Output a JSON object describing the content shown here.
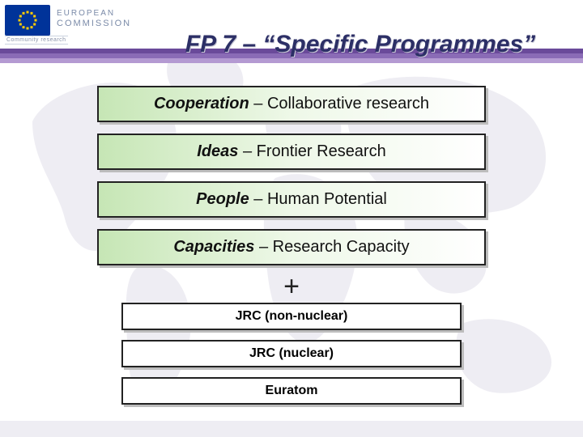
{
  "header": {
    "org_line1": "EUROPEAN",
    "org_line2": "COMMISSION",
    "subline": "Community research"
  },
  "stripes": {
    "colors": [
      "#6a4a9a",
      "#8a6bb6",
      "#b49ad2"
    ]
  },
  "title": "FP 7 – “Specific Programmes”",
  "programmes": [
    {
      "em": "Cooperation",
      "rest": " – Collaborative research"
    },
    {
      "em": "Ideas",
      "rest": " – Frontier Research"
    },
    {
      "em": "People",
      "rest": " – Human Potential"
    },
    {
      "em": "Capacities",
      "rest": " – Research Capacity"
    }
  ],
  "plus": "+",
  "sub_programmes": [
    "JRC (non-nuclear)",
    "JRC (nuclear)",
    "Euratom"
  ],
  "map_fill": "#b7b0cc"
}
